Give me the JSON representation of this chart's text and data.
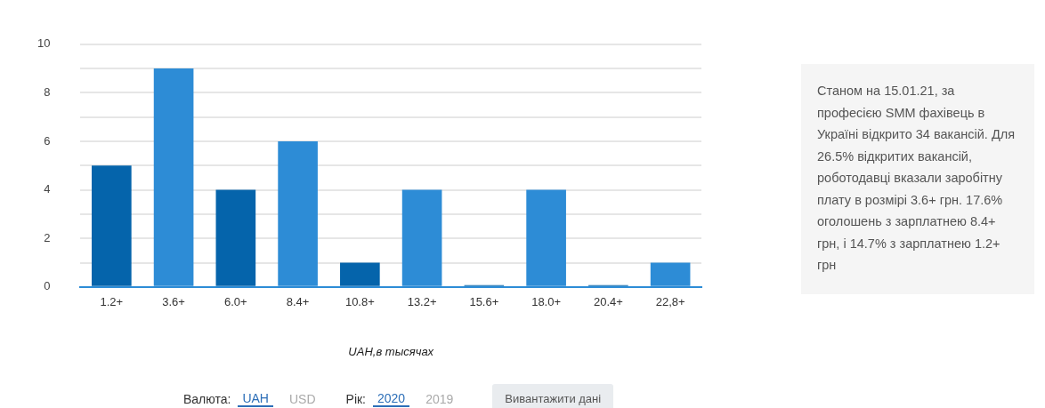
{
  "chart_data": {
    "type": "bar",
    "categories": [
      "1.2+",
      "3.6+",
      "6.0+",
      "8.4+",
      "10.8+",
      "13.2+",
      "15.6+",
      "18.0+",
      "20.4+",
      "22,8+"
    ],
    "values": [
      5,
      9,
      4,
      6,
      1,
      4,
      0,
      4,
      0,
      1
    ],
    "colors": [
      "#0564ab",
      "#2d8cd6",
      "#0564ab",
      "#2d8cd6",
      "#0564ab",
      "#2d8cd6",
      "#0564ab",
      "#2d8cd6",
      "#0564ab",
      "#2d8cd6"
    ],
    "xlabel": "UAH,в тысячах",
    "ylim": [
      0,
      10
    ],
    "yticks": [
      0,
      {
        "value": 1,
        "label": null
      },
      2,
      {
        "value": 3,
        "label": null
      },
      4,
      {
        "value": 5,
        "label": null
      },
      6,
      {
        "value": 7,
        "label": null
      },
      8,
      {
        "value": 9,
        "label": null
      },
      10
    ],
    "grid": "y",
    "legend": false,
    "annotations": [
      "Станом на 15.01.21, за професією SMM фахівець в Україні відкрито 34 вакансій. Для 26.5% відкритих вакансій, роботодавці вказали заробітну плату в розмірі 3.6+ грн. 17.6% оголошень з зарплатнею 8.4+ грн, і 14.7% з зарплатнею 1.2+ грн",
      "Валюта:",
      "UAH",
      "USD",
      "Рік:",
      "2020",
      "2019",
      "Вивантажити дані"
    ]
  }
}
